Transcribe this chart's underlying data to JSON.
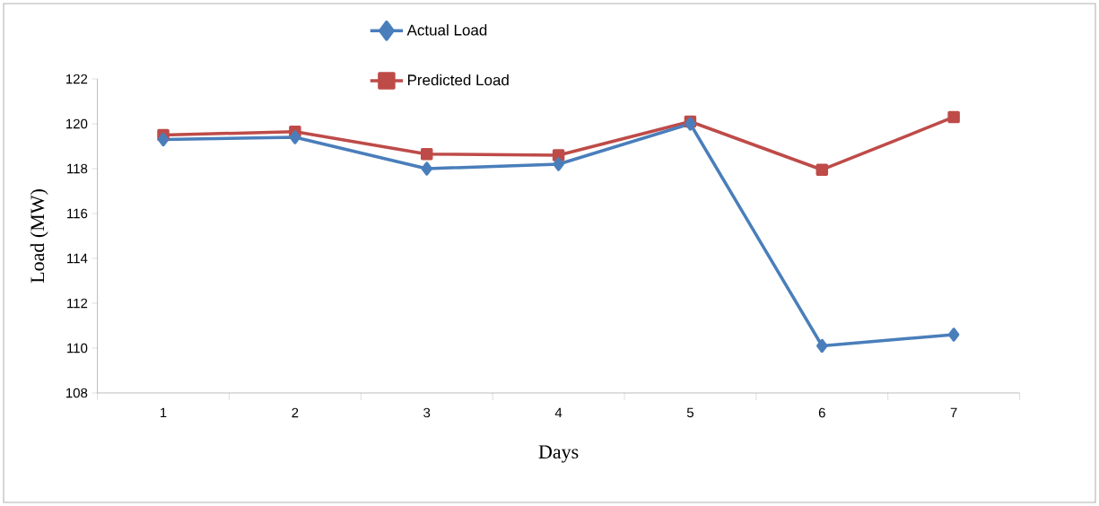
{
  "chart_data": {
    "type": "line",
    "xlabel": "Days",
    "ylabel": "Load (MW)",
    "categories": [
      "1",
      "2",
      "3",
      "4",
      "5",
      "6",
      "7"
    ],
    "series": [
      {
        "name": "Actual Load",
        "color": "#4a7ebb",
        "marker": "diamond",
        "values": [
          119.3,
          119.4,
          118.0,
          118.2,
          120.0,
          110.1,
          110.6
        ]
      },
      {
        "name": "Predicted Load",
        "color": "#be4b48",
        "marker": "square",
        "values": [
          119.5,
          119.65,
          118.65,
          118.6,
          120.1,
          117.95,
          120.3
        ]
      }
    ],
    "ylim": [
      108,
      122
    ],
    "yticks": [
      108,
      110,
      112,
      114,
      116,
      118,
      120,
      122
    ],
    "grid": false,
    "legend": "top",
    "line_style": "solid"
  }
}
